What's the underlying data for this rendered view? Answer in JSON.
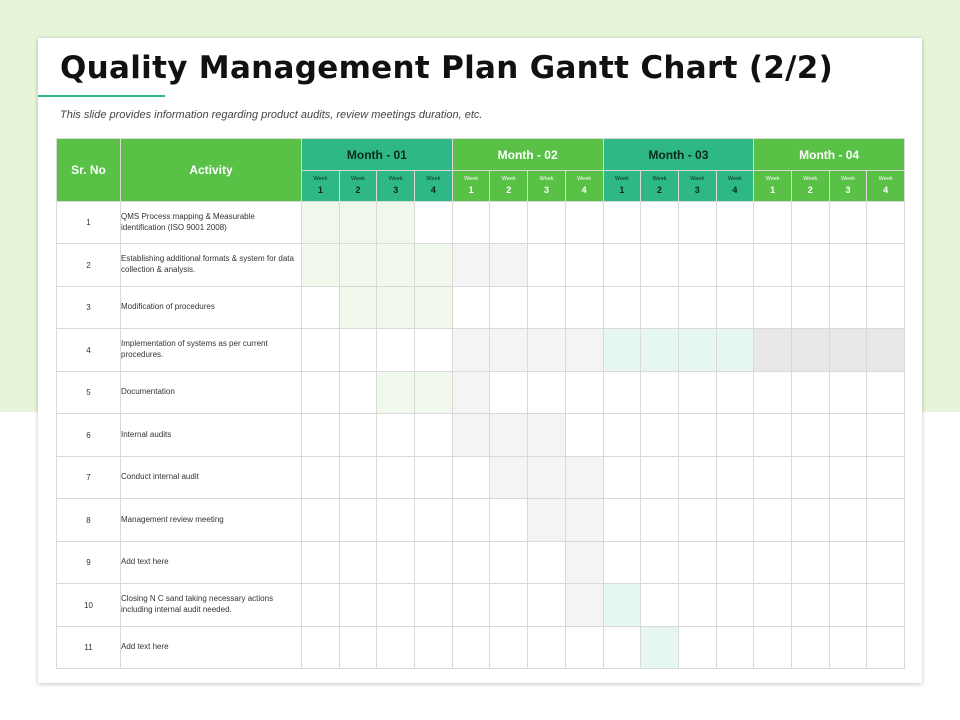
{
  "title": "Quality Management Plan Gantt Chart (2/2)",
  "subtitle": "This slide provides information regarding product audits, review meetings duration, etc.",
  "colors": {
    "teal": "#2eb886",
    "green": "#58c146",
    "fill_light_green": "#f1f8ec",
    "fill_light_grey": "#f4f4f4",
    "fill_light_teal": "#e5f7ef",
    "fill_grey": "#e8e8e8"
  },
  "table": {
    "sr_header": "Sr. No",
    "activity_header": "Activity",
    "week_word": "Week",
    "week_numbers": [
      "1",
      "2",
      "3",
      "4"
    ],
    "months": [
      "Month - 01",
      "Month - 02",
      "Month - 03",
      "Month - 04"
    ],
    "rows": [
      {
        "sr": "1",
        "activity": "QMS Process mapping & Measurable identification (ISO 9001 2008)",
        "cells": [
          "g",
          "g",
          "g",
          "",
          "",
          "",
          "",
          "",
          "",
          "",
          "",
          "",
          "",
          "",
          "",
          ""
        ]
      },
      {
        "sr": "2",
        "activity": "Establishing additional formats & system for data collection & analysis.",
        "cells": [
          "g",
          "g",
          "g",
          "g",
          "grey",
          "grey",
          "",
          "",
          "",
          "",
          "",
          "",
          "",
          "",
          "",
          ""
        ]
      },
      {
        "sr": "3",
        "activity": "Modification of procedures",
        "cells": [
          "",
          "g",
          "g",
          "g",
          "",
          "",
          "",
          "",
          "",
          "",
          "",
          "",
          "",
          "",
          "",
          ""
        ]
      },
      {
        "sr": "4",
        "activity": "Implementation of systems as per current procedures.",
        "cells": [
          "",
          "",
          "",
          "",
          "grey",
          "grey",
          "grey",
          "grey",
          "teal",
          "teal",
          "teal",
          "teal",
          "dark",
          "dark",
          "dark",
          "dark"
        ]
      },
      {
        "sr": "5",
        "activity": "Documentation",
        "cells": [
          "",
          "",
          "g",
          "g",
          "grey",
          "",
          "",
          "",
          "",
          "",
          "",
          "",
          "",
          "",
          "",
          ""
        ]
      },
      {
        "sr": "6",
        "activity": "Internal audits",
        "cells": [
          "",
          "",
          "",
          "",
          "grey",
          "grey",
          "grey",
          "",
          "",
          "",
          "",
          "",
          "",
          "",
          "",
          ""
        ]
      },
      {
        "sr": "7",
        "activity": "Conduct internal audit",
        "cells": [
          "",
          "",
          "",
          "",
          "",
          "grey",
          "grey",
          "grey",
          "",
          "",
          "",
          "",
          "",
          "",
          "",
          ""
        ]
      },
      {
        "sr": "8",
        "activity": "Management review meeting",
        "cells": [
          "",
          "",
          "",
          "",
          "",
          "",
          "grey",
          "grey",
          "",
          "",
          "",
          "",
          "",
          "",
          "",
          ""
        ]
      },
      {
        "sr": "9",
        "activity": "Add text here",
        "cells": [
          "",
          "",
          "",
          "",
          "",
          "",
          "",
          "grey",
          "",
          "",
          "",
          "",
          "",
          "",
          "",
          ""
        ]
      },
      {
        "sr": "10",
        "activity": "Closing N C sand taking necessary actions including internal audit needed.",
        "cells": [
          "",
          "",
          "",
          "",
          "",
          "",
          "",
          "grey",
          "teal",
          "",
          "",
          "",
          "",
          "",
          "",
          ""
        ]
      },
      {
        "sr": "11",
        "activity": "Add text here",
        "cells": [
          "",
          "",
          "",
          "",
          "",
          "",
          "",
          "",
          "",
          "teal",
          "",
          "",
          "",
          "",
          "",
          ""
        ]
      }
    ]
  }
}
